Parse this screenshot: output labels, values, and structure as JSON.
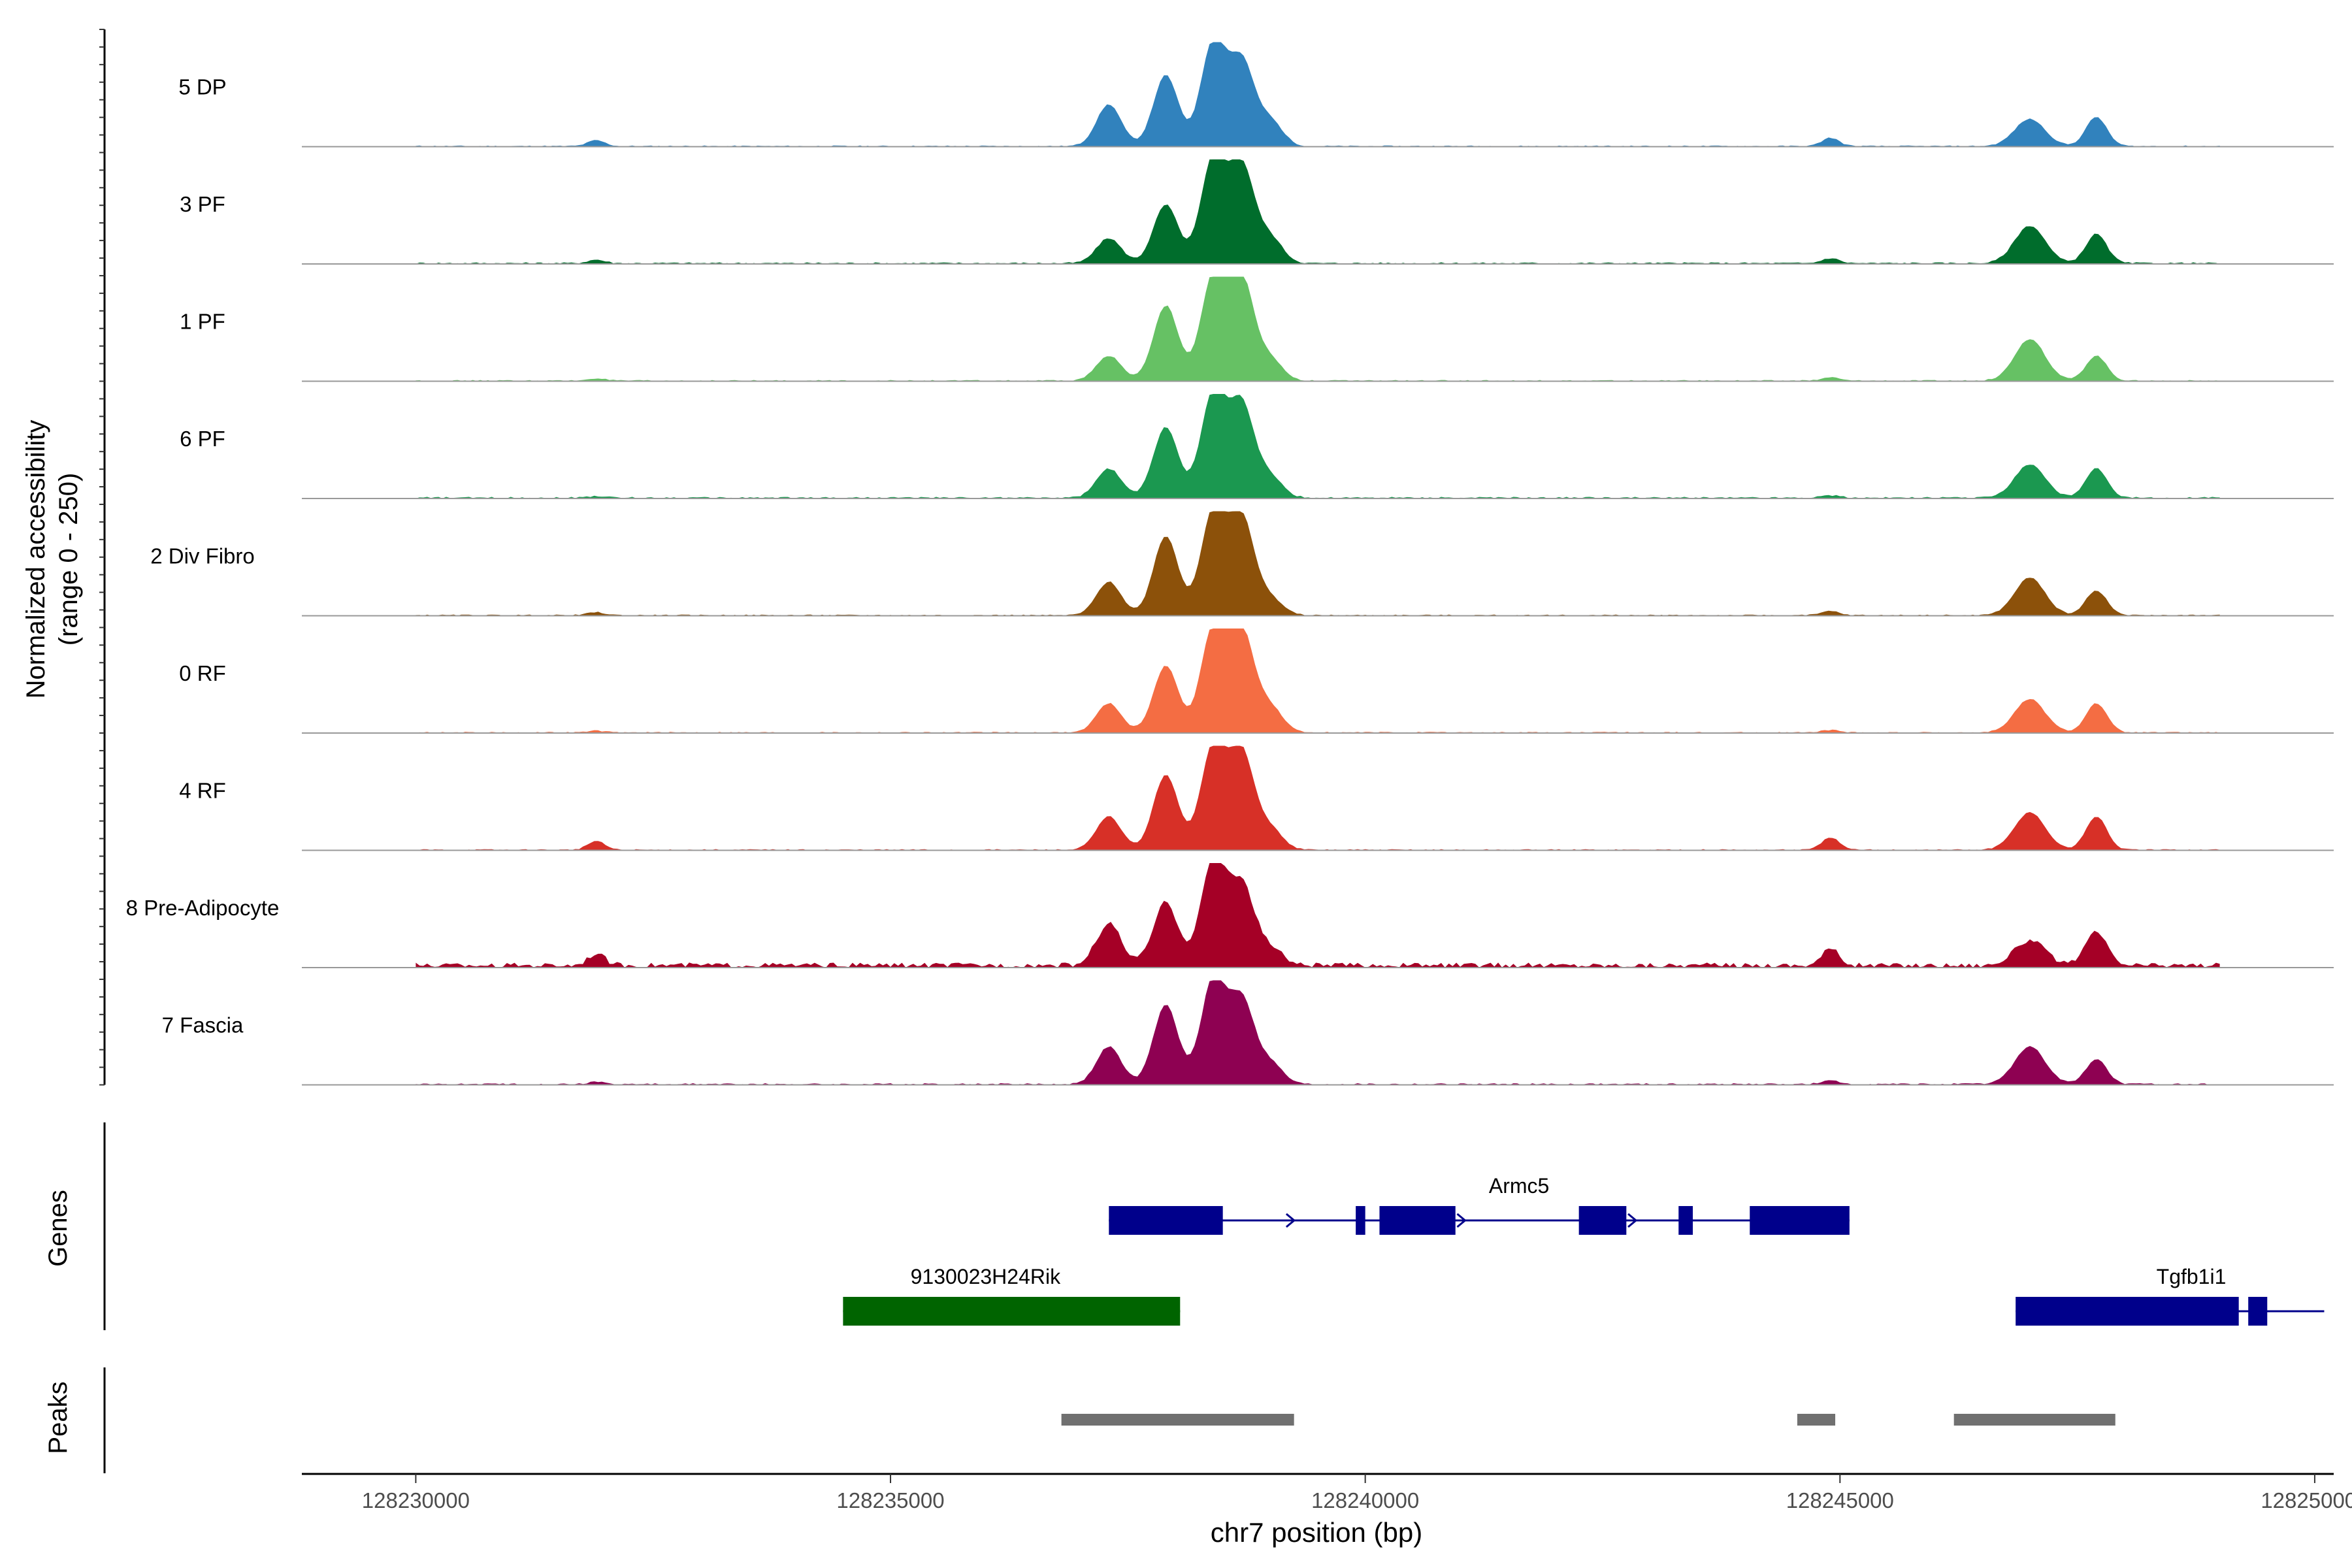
{
  "chart_data": {
    "type": "area",
    "title": "",
    "ylabel_lines": [
      "Normalized accessibility",
      "(range 0 - 250)"
    ],
    "ylim": [
      0,
      250
    ],
    "xlabel": "chr7 position (bp)",
    "xlim": [
      128228800,
      128250200
    ],
    "x_ticks": [
      128230000,
      128235000,
      128240000,
      128245000,
      128250000
    ],
    "x_tick_labels": [
      "128230000",
      "128235000",
      "128240000",
      "128245000",
      "128250000"
    ],
    "peaks_centers": [
      128237300,
      128237900,
      128238400,
      128238700,
      128239000
    ],
    "series": [
      {
        "name": "5 DP",
        "color": "#3182bd",
        "amps": [
          100,
          170,
          250,
          200,
          60
        ],
        "second_peaks": [
          65,
          70
        ],
        "blip": 20,
        "noise": 3
      },
      {
        "name": "3 PF",
        "color": "#006d2c",
        "amps": [
          60,
          140,
          250,
          230,
          60
        ],
        "second_peaks": [
          90,
          70
        ],
        "blip": 12,
        "noise": 4
      },
      {
        "name": "1 PF",
        "color": "#66c164",
        "amps": [
          60,
          180,
          250,
          240,
          50
        ],
        "second_peaks": [
          100,
          60
        ],
        "blip": 8,
        "noise": 3
      },
      {
        "name": "6 PF",
        "color": "#1b9850",
        "amps": [
          70,
          170,
          250,
          220,
          50
        ],
        "second_peaks": [
          80,
          70
        ],
        "blip": 6,
        "noise": 4
      },
      {
        "name": "2 Div Fibro",
        "color": "#8c510a",
        "amps": [
          80,
          190,
          250,
          230,
          40
        ],
        "second_peaks": [
          90,
          60
        ],
        "blip": 10,
        "noise": 3
      },
      {
        "name": "0 RF",
        "color": "#f46d43",
        "amps": [
          70,
          160,
          250,
          240,
          60
        ],
        "second_peaks": [
          80,
          70
        ],
        "blip": 6,
        "noise": 3
      },
      {
        "name": "4 RF",
        "color": "#d73027",
        "amps": [
          80,
          180,
          250,
          230,
          50
        ],
        "second_peaks": [
          90,
          80
        ],
        "blip": 30,
        "noise": 3
      },
      {
        "name": "8 Pre-Adipocyte",
        "color": "#a50026",
        "amps": [
          100,
          150,
          250,
          190,
          40
        ],
        "second_peaks": [
          60,
          80
        ],
        "blip": 40,
        "noise": 12
      },
      {
        "name": "7 Fascia",
        "color": "#8e0152",
        "amps": [
          90,
          190,
          250,
          200,
          50
        ],
        "second_peaks": [
          90,
          60
        ],
        "blip": 8,
        "noise": 4
      }
    ],
    "genes_track_label": "Genes",
    "genes": [
      {
        "name": "Armc5",
        "strand": "+",
        "start": 128237300,
        "end": 128245100,
        "exons": [
          [
            128237300,
            128238500
          ],
          [
            128239900,
            128240000
          ],
          [
            128240150,
            128240950
          ],
          [
            128242250,
            128242750
          ],
          [
            128243300,
            128243450
          ],
          [
            128244050,
            128245100
          ]
        ],
        "color": "#00008b"
      },
      {
        "name": "9130023H24Rik",
        "strand": "",
        "start": 128234500,
        "end": 128238050,
        "exons": [
          [
            128234500,
            128238050
          ]
        ],
        "color": "#006400"
      },
      {
        "name": "Tgfb1i1",
        "strand": "+",
        "start": 128246850,
        "end": 128250100,
        "exons": [
          [
            128246850,
            128249200
          ],
          [
            128249300,
            128249500
          ]
        ],
        "color": "#00008b"
      }
    ],
    "peaks_track_label": "Peaks",
    "peaks": [
      [
        128236800,
        128239250
      ],
      [
        128244550,
        128244950
      ],
      [
        128246200,
        128247900
      ]
    ],
    "peak_color": "#707070"
  }
}
